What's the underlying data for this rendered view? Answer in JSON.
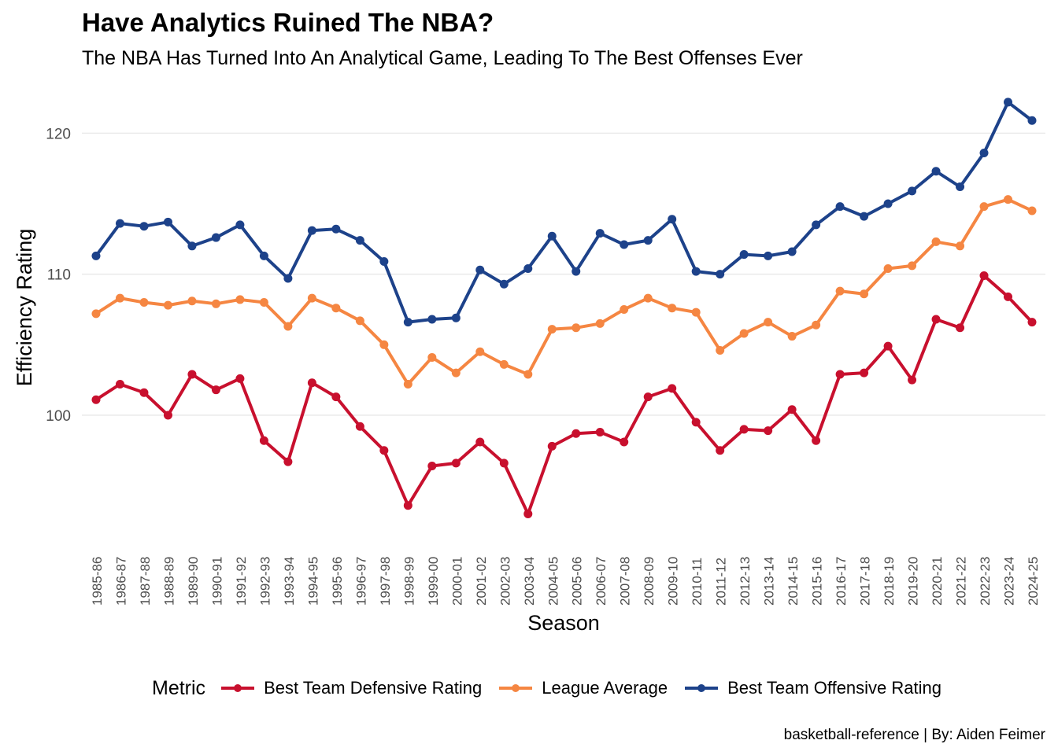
{
  "chart_data": {
    "type": "line",
    "title": "Have Analytics Ruined The NBA?",
    "subtitle": "The NBA Has Turned Into An Analytical Game, Leading To The Best Offenses Ever",
    "xlabel": "Season",
    "ylabel": "Efficiency Rating",
    "caption": "basketball-reference  |  By: Aiden Feimer",
    "legend_title": "Metric",
    "legend_position": "bottom",
    "grid": true,
    "ylim": [
      92.3,
      123.2
    ],
    "yticks": [
      100,
      110,
      120
    ],
    "categories": [
      "1985-86",
      "1986-87",
      "1987-88",
      "1988-89",
      "1989-90",
      "1990-91",
      "1991-92",
      "1992-93",
      "1993-94",
      "1994-95",
      "1995-96",
      "1996-97",
      "1997-98",
      "1998-99",
      "1999-00",
      "2000-01",
      "2001-02",
      "2002-03",
      "2003-04",
      "2004-05",
      "2005-06",
      "2006-07",
      "2007-08",
      "2008-09",
      "2009-10",
      "2010-11",
      "2011-12",
      "2012-13",
      "2013-14",
      "2014-15",
      "2015-16",
      "2016-17",
      "2017-18",
      "2018-19",
      "2019-20",
      "2020-21",
      "2021-22",
      "2022-23",
      "2023-24",
      "2024-25"
    ],
    "series": [
      {
        "name": "Best Team Defensive Rating",
        "color": "#c8102e",
        "values": [
          101.1,
          102.2,
          101.6,
          100.0,
          102.9,
          101.8,
          102.6,
          98.2,
          96.7,
          102.3,
          101.3,
          99.2,
          97.5,
          93.6,
          96.4,
          96.6,
          98.1,
          96.6,
          93.0,
          97.8,
          98.7,
          98.8,
          98.1,
          101.3,
          101.9,
          99.5,
          97.5,
          99.0,
          98.9,
          100.4,
          98.2,
          102.9,
          103.0,
          104.9,
          102.5,
          106.8,
          106.2,
          109.9,
          108.4,
          106.6
        ]
      },
      {
        "name": "League Average",
        "color": "#f58642",
        "values": [
          107.2,
          108.3,
          108.0,
          107.8,
          108.1,
          107.9,
          108.2,
          108.0,
          106.3,
          108.3,
          107.6,
          106.7,
          105.0,
          102.2,
          104.1,
          103.0,
          104.5,
          103.6,
          102.9,
          106.1,
          106.2,
          106.5,
          107.5,
          108.3,
          107.6,
          107.3,
          104.6,
          105.8,
          106.6,
          105.6,
          106.4,
          108.8,
          108.6,
          110.4,
          110.6,
          112.3,
          112.0,
          114.8,
          115.3,
          114.5
        ]
      },
      {
        "name": "Best Team Offensive Rating",
        "color": "#1d428a",
        "values": [
          111.3,
          113.6,
          113.4,
          113.7,
          112.0,
          112.6,
          113.5,
          111.3,
          109.7,
          113.1,
          113.2,
          112.4,
          110.9,
          106.6,
          106.8,
          106.9,
          110.3,
          109.3,
          110.4,
          112.7,
          110.2,
          112.9,
          112.1,
          112.4,
          113.9,
          110.2,
          110.0,
          111.4,
          111.3,
          111.6,
          113.5,
          114.8,
          114.1,
          115.0,
          115.9,
          117.3,
          116.2,
          118.6,
          122.2,
          120.9
        ]
      }
    ]
  }
}
